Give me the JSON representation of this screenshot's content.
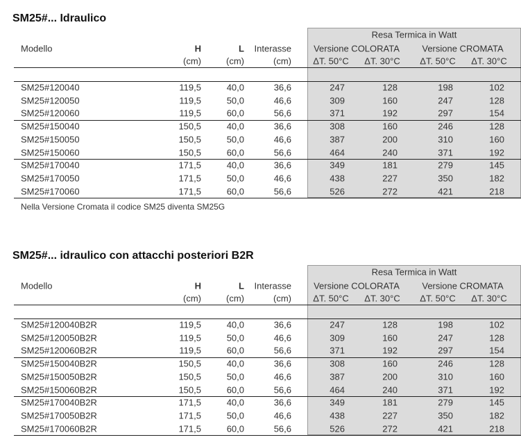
{
  "sections": [
    {
      "title": "SM25#... Idraulico",
      "header": {
        "modello": "Modello",
        "h": "H",
        "l": "L",
        "interasse": "Interasse",
        "h_unit": "(cm)",
        "l_unit": "(cm)",
        "interasse_unit": "(cm)",
        "resa": "Resa Termica in Watt",
        "colorata": "Versione COLORATA",
        "cromata": "Versione CROMATA",
        "subheaders": [
          "ΔT. 50°C",
          "ΔT. 30°C",
          "ΔT. 50°C",
          "ΔT. 30°C"
        ]
      },
      "rows": [
        [
          "SM25#120040",
          "119,5",
          "40,0",
          "36,6",
          "247",
          "128",
          "198",
          "102"
        ],
        [
          "SM25#120050",
          "119,5",
          "50,0",
          "46,6",
          "309",
          "160",
          "247",
          "128"
        ],
        [
          "SM25#120060",
          "119,5",
          "60,0",
          "56,6",
          "371",
          "192",
          "297",
          "154"
        ],
        [
          "SM25#150040",
          "150,5",
          "40,0",
          "36,6",
          "308",
          "160",
          "246",
          "128"
        ],
        [
          "SM25#150050",
          "150,5",
          "50,0",
          "46,6",
          "387",
          "200",
          "310",
          "160"
        ],
        [
          "SM25#150060",
          "150,5",
          "60,0",
          "56,6",
          "464",
          "240",
          "371",
          "192"
        ],
        [
          "SM25#170040",
          "171,5",
          "40,0",
          "36,6",
          "349",
          "181",
          "279",
          "145"
        ],
        [
          "SM25#170050",
          "171,5",
          "50,0",
          "46,6",
          "438",
          "227",
          "350",
          "182"
        ],
        [
          "SM25#170060",
          "171,5",
          "60,0",
          "56,6",
          "526",
          "272",
          "421",
          "218"
        ]
      ],
      "note": "Nella Versione Cromata il codice SM25 diventa SM25G"
    },
    {
      "title": "SM25#... idraulico con attacchi posteriori B2R",
      "header": {
        "modello": "Modello",
        "h": "H",
        "l": "L",
        "interasse": "Interasse",
        "h_unit": "(cm)",
        "l_unit": "(cm)",
        "interasse_unit": "(cm)",
        "resa": "Resa Termica in Watt",
        "colorata": "Versione COLORATA",
        "cromata": "Versione CROMATA",
        "subheaders": [
          "ΔT. 50°C",
          "ΔT. 30°C",
          "ΔT. 50°C",
          "ΔT. 30°C"
        ]
      },
      "rows": [
        [
          "SM25#120040B2R",
          "119,5",
          "40,0",
          "36,6",
          "247",
          "128",
          "198",
          "102"
        ],
        [
          "SM25#120050B2R",
          "119,5",
          "50,0",
          "46,6",
          "309",
          "160",
          "247",
          "128"
        ],
        [
          "SM25#120060B2R",
          "119,5",
          "60,0",
          "56,6",
          "371",
          "192",
          "297",
          "154"
        ],
        [
          "SM25#150040B2R",
          "150,5",
          "40,0",
          "36,6",
          "308",
          "160",
          "246",
          "128"
        ],
        [
          "SM25#150050B2R",
          "150,5",
          "50,0",
          "46,6",
          "387",
          "200",
          "310",
          "160"
        ],
        [
          "SM25#150060B2R",
          "150,5",
          "60,0",
          "56,6",
          "464",
          "240",
          "371",
          "192"
        ],
        [
          "SM25#170040B2R",
          "171,5",
          "40,0",
          "36,6",
          "349",
          "181",
          "279",
          "145"
        ],
        [
          "SM25#170050B2R",
          "171,5",
          "50,0",
          "46,6",
          "438",
          "227",
          "350",
          "182"
        ],
        [
          "SM25#170060B2R",
          "171,5",
          "60,0",
          "56,6",
          "526",
          "272",
          "421",
          "218"
        ]
      ]
    }
  ]
}
